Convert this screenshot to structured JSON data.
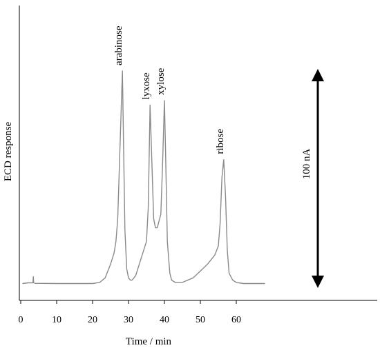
{
  "chart_data": {
    "type": "line",
    "title": "",
    "xlabel": "Time / min",
    "ylabel": "ECD response",
    "xlim": [
      0,
      100
    ],
    "ylim": [
      0,
      100
    ],
    "x_ticks": [
      0,
      10,
      20,
      30,
      40,
      50,
      60
    ],
    "grid": false,
    "legend": "none",
    "series": [
      {
        "x": [
          0.5,
          2,
          3.4,
          3.5,
          3.6,
          4,
          10,
          20,
          22,
          23.5,
          25,
          26,
          26.5,
          27,
          27.5,
          28,
          28.3,
          28.6,
          29,
          29.5,
          30,
          30.5,
          31,
          32,
          33,
          34,
          35,
          35.5,
          36,
          36.5,
          37,
          37.5,
          38,
          39,
          39.5,
          40,
          40.3,
          40.8,
          41.5,
          42,
          43,
          45,
          48,
          50,
          52,
          54,
          55,
          55.5,
          56,
          56.5,
          57,
          57.5,
          58,
          59,
          60,
          62,
          65,
          68
        ],
        "y": [
          1.5,
          1.8,
          1.8,
          4.5,
          1.8,
          1.6,
          1.5,
          1.5,
          2,
          4,
          10,
          15,
          20,
          30,
          55,
          80,
          95,
          65,
          25,
          8,
          4,
          3,
          3,
          5,
          10,
          15,
          20,
          35,
          80,
          55,
          30,
          26,
          26,
          32,
          55,
          82,
          60,
          20,
          6,
          3,
          2,
          2,
          4,
          7,
          10,
          14,
          18,
          28,
          48,
          56,
          40,
          16,
          6,
          3,
          2,
          1.5,
          1.5,
          1.5
        ]
      }
    ],
    "annotations": [
      {
        "text": "arabinose",
        "x": 28.3,
        "y": 95
      },
      {
        "text": "lyxose",
        "x": 36,
        "y": 80
      },
      {
        "text": "xylose",
        "x": 40,
        "y": 82
      },
      {
        "text": "ribose",
        "x": 56.5,
        "y": 56
      }
    ],
    "scale_bar": {
      "label": "100 nA",
      "value": 100
    },
    "colors": {
      "trace": "#8a8a8a",
      "axes": "#000000",
      "scale_bar": "#000000"
    }
  }
}
